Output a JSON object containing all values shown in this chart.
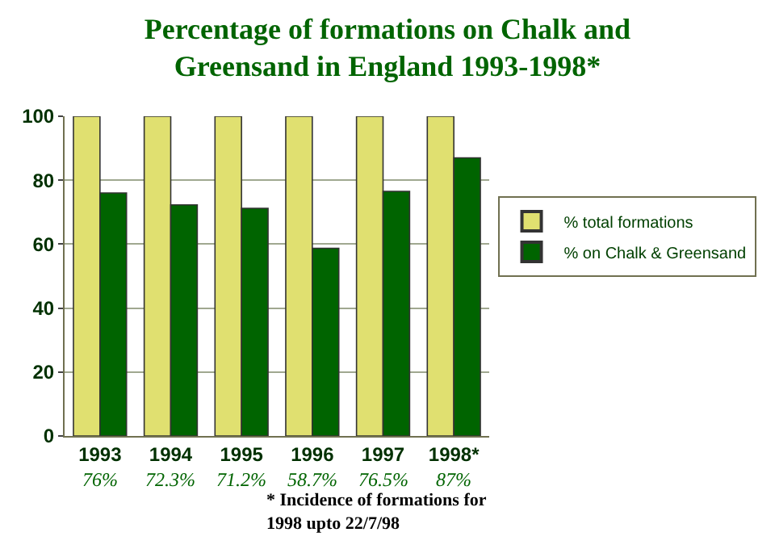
{
  "chart_data": {
    "type": "bar",
    "title": "Percentage of formations on Chalk and\nGreensand in England 1993-1998*",
    "categories": [
      "1993",
      "1994",
      "1995",
      "1996",
      "1997",
      "1998*"
    ],
    "series": [
      {
        "name": "% total formations",
        "color": "#e0e070",
        "values": [
          100,
          100,
          100,
          100,
          100,
          100
        ]
      },
      {
        "name": "% on Chalk & Greensand",
        "color": "#006400",
        "values": [
          76,
          72.3,
          71.2,
          58.7,
          76.5,
          87
        ],
        "value_labels": [
          "76%",
          "72.3%",
          "71.2%",
          "58.7%",
          "76.5%",
          "87%"
        ]
      }
    ],
    "ylim": [
      0,
      100
    ],
    "yticks": [
      0,
      20,
      40,
      60,
      80,
      100
    ],
    "grid": "y",
    "legend": "right",
    "annotations": [
      "* Incidence of formations for\n1998 upto 22/7/98"
    ]
  }
}
